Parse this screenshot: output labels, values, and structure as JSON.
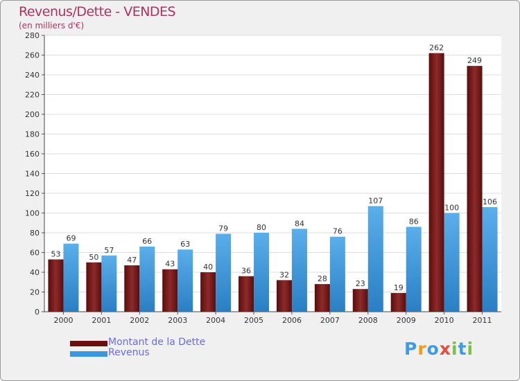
{
  "header": {
    "title": "Revenus/Dette - VENDES",
    "subtitle": "(en milliers d'€)"
  },
  "legend": {
    "items": [
      {
        "label": "Montant de la Dette",
        "color": "#7a1e1e"
      },
      {
        "label": "Revenus",
        "color": "#3a96dd"
      }
    ]
  },
  "logo": {
    "letters": [
      "P",
      "r",
      "o",
      "x",
      "i",
      "t",
      "i"
    ],
    "colors": [
      "#3d9be9",
      "#f39c12",
      "#3d9be9",
      "#e74c3c",
      "#7ac143",
      "#3d9be9",
      "#7ac143"
    ]
  },
  "chart_data": {
    "type": "bar",
    "title": "Revenus/Dette - VENDES",
    "ylabel": "(en milliers d'€)",
    "xlabel": "",
    "categories": [
      "2000",
      "2001",
      "2002",
      "2003",
      "2004",
      "2005",
      "2006",
      "2007",
      "2008",
      "2009",
      "2010",
      "2011"
    ],
    "series": [
      {
        "name": "Montant de la Dette",
        "color": "#7a1e1e",
        "values": [
          53,
          50,
          47,
          43,
          40,
          36,
          32,
          28,
          23,
          19,
          262,
          249
        ]
      },
      {
        "name": "Revenus",
        "color": "#3a96dd",
        "values": [
          69,
          57,
          66,
          63,
          79,
          80,
          84,
          76,
          107,
          86,
          100,
          106
        ]
      }
    ],
    "ylim": [
      0,
      280
    ],
    "yticks": [
      0,
      20,
      40,
      60,
      80,
      100,
      120,
      140,
      160,
      180,
      200,
      220,
      240,
      260,
      280
    ],
    "grid": true,
    "legend_position": "bottom-left"
  }
}
